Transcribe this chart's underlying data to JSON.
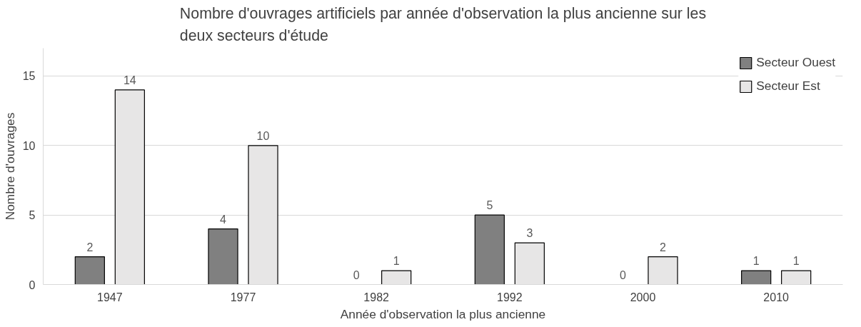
{
  "chart_data": {
    "type": "bar",
    "title": "Nombre d'ouvrages artificiels par année d'observation la plus ancienne sur les deux secteurs d'étude",
    "xlabel": "Année d'observation la plus ancienne",
    "ylabel": "Nombre d'ouvrages",
    "categories": [
      "1947",
      "1977",
      "1982",
      "1992",
      "2000",
      "2010"
    ],
    "series": [
      {
        "name": "Secteur Ouest",
        "color": "#808080",
        "values": [
          2,
          4,
          0,
          5,
          0,
          1
        ]
      },
      {
        "name": "Secteur Est",
        "color": "#e7e6e6",
        "values": [
          14,
          10,
          1,
          3,
          2,
          1
        ]
      }
    ],
    "ylim": [
      0,
      17
    ],
    "yticks": [
      0,
      5,
      10,
      15
    ],
    "grid": "y",
    "legend": "top right",
    "data_labels": true
  }
}
